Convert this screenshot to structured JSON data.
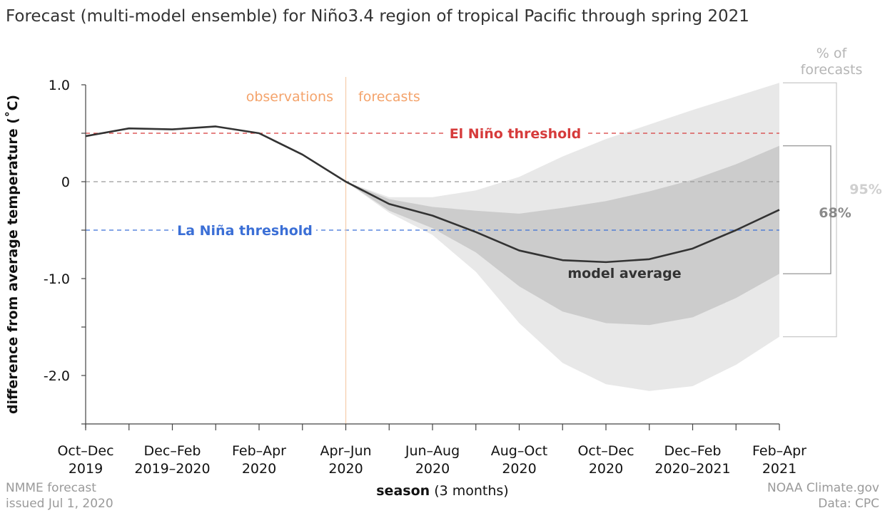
{
  "title": "Forecast (multi-model ensemble) for Niño3.4 region of tropical Pacific through spring 2021",
  "footer": {
    "left_line1": "NMME forecast",
    "left_line2": "issued Jul 1, 2020",
    "right_line1": "NOAA Climate.gov",
    "right_line2": "Data: CPC"
  },
  "colors": {
    "el_nino": "#d63b3b",
    "la_nina": "#3b6fd6",
    "phase_label": "#f4a36b",
    "band_95": "#e8e8e8",
    "band_68": "#cccccc",
    "line": "#333333"
  },
  "chart_data": {
    "type": "line",
    "xlabel_bold": "season",
    "xlabel_rest": "(3 months)",
    "ylabel": "difference from average temperature (˚C)",
    "ylim": [
      -2.5,
      1.0
    ],
    "yticks": [
      1.0,
      0,
      -1.0,
      -2.0
    ],
    "ytick_labels": [
      "1.0",
      "0",
      "-1.0",
      "-2.0"
    ],
    "x_labels": [
      {
        "index": 0,
        "line1": "Oct–Dec",
        "line2": "2019"
      },
      {
        "index": 2,
        "line1": "Dec–Feb",
        "line2": "2019–2020"
      },
      {
        "index": 4,
        "line1": "Feb–Apr",
        "line2": "2020"
      },
      {
        "index": 6,
        "line1": "Apr–Jun",
        "line2": "2020"
      },
      {
        "index": 8,
        "line1": "Jun–Aug",
        "line2": "2020"
      },
      {
        "index": 10,
        "line1": "Aug–Oct",
        "line2": "2020"
      },
      {
        "index": 12,
        "line1": "Oct–Dec",
        "line2": "2020"
      },
      {
        "index": 14,
        "line1": "Dec–Feb",
        "line2": "2020–2021"
      },
      {
        "index": 16,
        "line1": "Feb–Apr",
        "line2": "2021"
      }
    ],
    "n_seasons": 17,
    "observations": {
      "label": "observations",
      "x": [
        0,
        1,
        2,
        3,
        4,
        5,
        6
      ],
      "y": [
        0.47,
        0.55,
        0.54,
        0.57,
        0.5,
        0.28,
        0.0
      ]
    },
    "forecast": {
      "label": "forecasts",
      "name": "model average",
      "x": [
        6,
        7,
        8,
        9,
        10,
        11,
        12,
        13,
        14,
        15,
        16
      ],
      "mean": [
        0.0,
        -0.23,
        -0.35,
        -0.52,
        -0.71,
        -0.81,
        -0.83,
        -0.8,
        -0.69,
        -0.5,
        -0.29
      ],
      "band68_upper": [
        0.0,
        -0.18,
        -0.26,
        -0.3,
        -0.33,
        -0.27,
        -0.2,
        -0.1,
        0.02,
        0.18,
        0.37
      ],
      "band68_lower": [
        0.0,
        -0.3,
        -0.48,
        -0.73,
        -1.08,
        -1.34,
        -1.46,
        -1.48,
        -1.4,
        -1.2,
        -0.95
      ],
      "band95_upper": [
        0.0,
        -0.16,
        -0.16,
        -0.09,
        0.05,
        0.26,
        0.44,
        0.59,
        0.74,
        0.88,
        1.02
      ],
      "band95_lower": [
        0.0,
        -0.32,
        -0.55,
        -0.93,
        -1.46,
        -1.87,
        -2.09,
        -2.16,
        -2.11,
        -1.89,
        -1.6
      ]
    },
    "thresholds": [
      {
        "name": "El Niño threshold",
        "y": 0.5
      },
      {
        "name": "La Niña threshold",
        "y": -0.5
      }
    ],
    "bands_legend": {
      "title_line1": "% of",
      "title_line2": "forecasts",
      "band95": "95%",
      "band68": "68%"
    }
  }
}
